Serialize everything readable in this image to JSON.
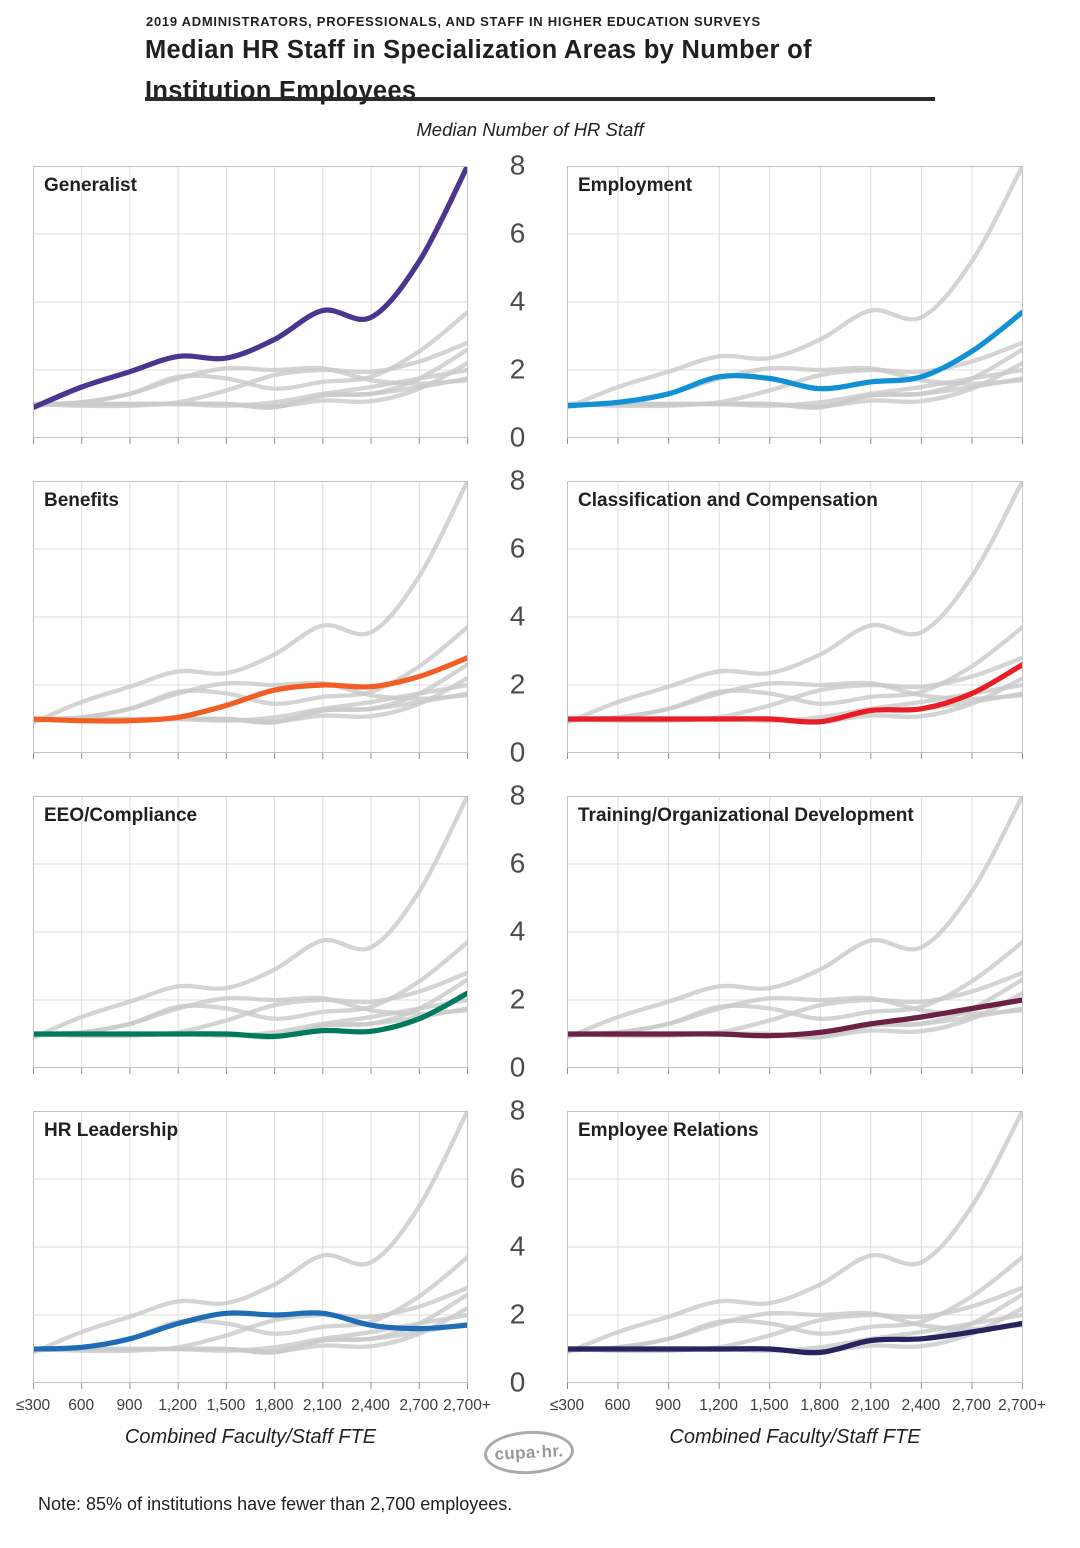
{
  "header": {
    "eyebrow": "2019 ADMINISTRATORS, PROFESSIONALS, AND STAFF IN HIGHER EDUCATION SURVEYS",
    "title_line1": "Median HR Staff in Specialization Areas by Number of",
    "title_line2": "Institution Employees"
  },
  "note": "Note: 85% of institutions have fewer than 2,700 employees.",
  "logo_text": "cupa·hr.",
  "chart_data": {
    "type": "line",
    "layout": "small-multiples-4x2",
    "y_axis_title": "Median Number of HR Staff",
    "x_axis_title": "Combined Faculty/Staff FTE",
    "x_categories": [
      "≤300",
      "600",
      "900",
      "1,200",
      "1,500",
      "1,800",
      "2,100",
      "2,400",
      "2,700",
      "2,700+"
    ],
    "y_ticks": [
      8,
      6,
      4,
      2,
      0
    ],
    "ylim": [
      0,
      8
    ],
    "grid": true,
    "panels": [
      "Generalist",
      "Employment",
      "Benefits",
      "Classification and Compensation",
      "EEO/Compliance",
      "Training/Organizational Development",
      "HR Leadership",
      "Employee Relations"
    ],
    "series": [
      {
        "name": "Generalist",
        "color": "#4a3590",
        "values": [
          0.9,
          1.5,
          1.95,
          2.4,
          2.35,
          2.9,
          3.75,
          3.55,
          5.2,
          8.0
        ]
      },
      {
        "name": "Employment",
        "color": "#1191d5",
        "values": [
          0.95,
          1.05,
          1.3,
          1.8,
          1.75,
          1.45,
          1.65,
          1.8,
          2.55,
          3.7
        ]
      },
      {
        "name": "Benefits",
        "color": "#f15d22",
        "values": [
          1.0,
          0.95,
          0.95,
          1.05,
          1.4,
          1.85,
          2.0,
          1.95,
          2.25,
          2.8
        ]
      },
      {
        "name": "Classification and Compensation",
        "color": "#e81d25",
        "values": [
          1.0,
          1.0,
          1.0,
          1.0,
          1.0,
          0.92,
          1.25,
          1.3,
          1.75,
          2.6
        ]
      },
      {
        "name": "EEO/Compliance",
        "color": "#00795e",
        "values": [
          1.0,
          1.0,
          1.0,
          1.0,
          1.0,
          0.93,
          1.1,
          1.08,
          1.45,
          2.2
        ]
      },
      {
        "name": "Training/Organizational Development",
        "color": "#6b2045",
        "values": [
          1.0,
          1.0,
          1.0,
          1.0,
          0.95,
          1.05,
          1.3,
          1.5,
          1.75,
          2.0
        ]
      },
      {
        "name": "HR Leadership",
        "color": "#1d6cb5",
        "values": [
          1.0,
          1.05,
          1.3,
          1.75,
          2.05,
          2.0,
          2.05,
          1.7,
          1.6,
          1.7
        ]
      },
      {
        "name": "Employee Relations",
        "color": "#27235c",
        "values": [
          1.0,
          1.0,
          1.0,
          1.0,
          1.0,
          0.9,
          1.25,
          1.3,
          1.5,
          1.75
        ]
      }
    ],
    "grey_line_color": "#cbcbcb",
    "gridline_color": "#dcdcdc",
    "panel_border_color": "#c2c2c4",
    "tick_color": "#8f9093"
  }
}
